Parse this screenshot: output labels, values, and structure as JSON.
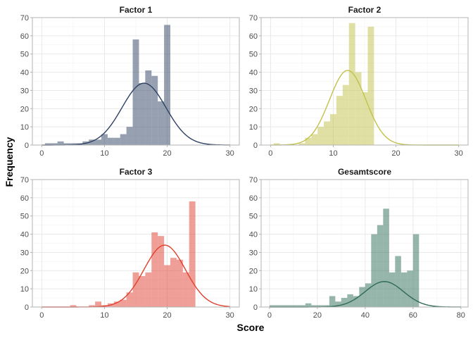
{
  "chart_data": {
    "type": "histogram",
    "xlabel": "Score",
    "ylabel": "Frequency",
    "ylim": [
      0,
      70
    ],
    "yticks": [
      0,
      10,
      20,
      30,
      40,
      50,
      60,
      70
    ],
    "panels": [
      {
        "title": "Factor 1",
        "color": "#2e4162",
        "xlim": [
          -1.5,
          31.5
        ],
        "xticks": [
          0,
          10,
          20,
          30
        ],
        "bins": [
          {
            "x0": 0.5,
            "x1": 1.5,
            "count": 1
          },
          {
            "x0": 1.5,
            "x1": 2.5,
            "count": 1
          },
          {
            "x0": 2.5,
            "x1": 3.5,
            "count": 2
          },
          {
            "x0": 3.5,
            "x1": 4.5,
            "count": 1
          },
          {
            "x0": 4.5,
            "x1": 5.5,
            "count": 1
          },
          {
            "x0": 5.5,
            "x1": 6.5,
            "count": 1
          },
          {
            "x0": 6.5,
            "x1": 7.5,
            "count": 2
          },
          {
            "x0": 7.5,
            "x1": 8.5,
            "count": 3
          },
          {
            "x0": 8.5,
            "x1": 9.5,
            "count": 3
          },
          {
            "x0": 9.5,
            "x1": 10.5,
            "count": 6
          },
          {
            "x0": 10.5,
            "x1": 11.5,
            "count": 4
          },
          {
            "x0": 11.5,
            "x1": 12.5,
            "count": 4
          },
          {
            "x0": 12.5,
            "x1": 13.5,
            "count": 6
          },
          {
            "x0": 13.5,
            "x1": 14.5,
            "count": 10
          },
          {
            "x0": 14.5,
            "x1": 15.5,
            "count": 58
          },
          {
            "x0": 15.5,
            "x1": 16.5,
            "count": 34
          },
          {
            "x0": 16.5,
            "x1": 17.5,
            "count": 41
          },
          {
            "x0": 17.5,
            "x1": 18.5,
            "count": 38
          },
          {
            "x0": 18.5,
            "x1": 19.5,
            "count": 24
          },
          {
            "x0": 19.5,
            "x1": 20.5,
            "count": 66
          }
        ],
        "curve": {
          "mean": 16.3,
          "sd": 3.5,
          "peak": 34,
          "range": [
            0,
            30
          ]
        }
      },
      {
        "title": "Factor 2",
        "color": "#c2c14a",
        "xlim": [
          -1.5,
          31.5
        ],
        "xticks": [
          0,
          10,
          20,
          30
        ],
        "bins": [
          {
            "x0": 0.5,
            "x1": 1.5,
            "count": 1
          },
          {
            "x0": 4.5,
            "x1": 5.5,
            "count": 1
          },
          {
            "x0": 5.5,
            "x1": 6.5,
            "count": 4
          },
          {
            "x0": 6.5,
            "x1": 7.5,
            "count": 6
          },
          {
            "x0": 7.5,
            "x1": 8.5,
            "count": 10
          },
          {
            "x0": 8.5,
            "x1": 9.5,
            "count": 13
          },
          {
            "x0": 9.5,
            "x1": 10.5,
            "count": 17
          },
          {
            "x0": 10.5,
            "x1": 11.5,
            "count": 27
          },
          {
            "x0": 11.5,
            "x1": 12.5,
            "count": 33
          },
          {
            "x0": 12.5,
            "x1": 13.5,
            "count": 67
          },
          {
            "x0": 13.5,
            "x1": 14.5,
            "count": 40
          },
          {
            "x0": 14.5,
            "x1": 15.5,
            "count": 29
          },
          {
            "x0": 15.5,
            "x1": 16.5,
            "count": 65
          }
        ],
        "curve": {
          "mean": 12.3,
          "sd": 2.9,
          "peak": 41,
          "range": [
            0,
            30
          ]
        }
      },
      {
        "title": "Factor 3",
        "color": "#e0402f",
        "xlim": [
          -1.5,
          31.5
        ],
        "xticks": [
          0,
          10,
          20,
          30
        ],
        "bins": [
          {
            "x0": 4.5,
            "x1": 5.5,
            "count": 1
          },
          {
            "x0": 7.5,
            "x1": 8.5,
            "count": 1
          },
          {
            "x0": 8.5,
            "x1": 9.5,
            "count": 3
          },
          {
            "x0": 9.5,
            "x1": 10.5,
            "count": 1
          },
          {
            "x0": 10.5,
            "x1": 11.5,
            "count": 2
          },
          {
            "x0": 11.5,
            "x1": 12.5,
            "count": 3
          },
          {
            "x0": 12.5,
            "x1": 13.5,
            "count": 4
          },
          {
            "x0": 13.5,
            "x1": 14.5,
            "count": 8
          },
          {
            "x0": 14.5,
            "x1": 15.5,
            "count": 19
          },
          {
            "x0": 15.5,
            "x1": 16.5,
            "count": 17
          },
          {
            "x0": 16.5,
            "x1": 17.5,
            "count": 19
          },
          {
            "x0": 17.5,
            "x1": 18.5,
            "count": 41
          },
          {
            "x0": 18.5,
            "x1": 19.5,
            "count": 39
          },
          {
            "x0": 19.5,
            "x1": 20.5,
            "count": 23
          },
          {
            "x0": 20.5,
            "x1": 21.5,
            "count": 27
          },
          {
            "x0": 21.5,
            "x1": 22.5,
            "count": 26
          },
          {
            "x0": 22.5,
            "x1": 23.5,
            "count": 19
          },
          {
            "x0": 23.5,
            "x1": 24.5,
            "count": 58
          }
        ],
        "curve": {
          "mean": 19.6,
          "sd": 3.3,
          "peak": 34,
          "range": [
            0,
            30
          ]
        }
      },
      {
        "title": "Gesamtscore",
        "color": "#2d6b58",
        "xlim": [
          -3.5,
          83
        ],
        "xticks": [
          0,
          20,
          40,
          60,
          80
        ],
        "bins": [
          {
            "x0": 0,
            "x1": 2.5,
            "count": 1
          },
          {
            "x0": 2.5,
            "x1": 5,
            "count": 1
          },
          {
            "x0": 5,
            "x1": 7.5,
            "count": 1
          },
          {
            "x0": 7.5,
            "x1": 10,
            "count": 1
          },
          {
            "x0": 10,
            "x1": 12.5,
            "count": 1
          },
          {
            "x0": 12.5,
            "x1": 15,
            "count": 1
          },
          {
            "x0": 15,
            "x1": 17.5,
            "count": 2
          },
          {
            "x0": 17.5,
            "x1": 20,
            "count": 1
          },
          {
            "x0": 20,
            "x1": 22.5,
            "count": 1
          },
          {
            "x0": 22.5,
            "x1": 25,
            "count": 1
          },
          {
            "x0": 25,
            "x1": 27.5,
            "count": 6
          },
          {
            "x0": 27.5,
            "x1": 30,
            "count": 3
          },
          {
            "x0": 30,
            "x1": 32.5,
            "count": 5
          },
          {
            "x0": 32.5,
            "x1": 35,
            "count": 7
          },
          {
            "x0": 35,
            "x1": 37.5,
            "count": 6
          },
          {
            "x0": 37.5,
            "x1": 40,
            "count": 11
          },
          {
            "x0": 40,
            "x1": 42.5,
            "count": 13
          },
          {
            "x0": 42.5,
            "x1": 45,
            "count": 40
          },
          {
            "x0": 45,
            "x1": 47.5,
            "count": 45
          },
          {
            "x0": 47.5,
            "x1": 50,
            "count": 54
          },
          {
            "x0": 50,
            "x1": 52.5,
            "count": 19
          },
          {
            "x0": 52.5,
            "x1": 55,
            "count": 28
          },
          {
            "x0": 55,
            "x1": 57.5,
            "count": 19
          },
          {
            "x0": 57.5,
            "x1": 60,
            "count": 20
          },
          {
            "x0": 60,
            "x1": 62.5,
            "count": 40
          }
        ],
        "curve": {
          "mean": 48,
          "sd": 8,
          "peak": 14,
          "range": [
            0,
            80
          ]
        }
      }
    ]
  }
}
